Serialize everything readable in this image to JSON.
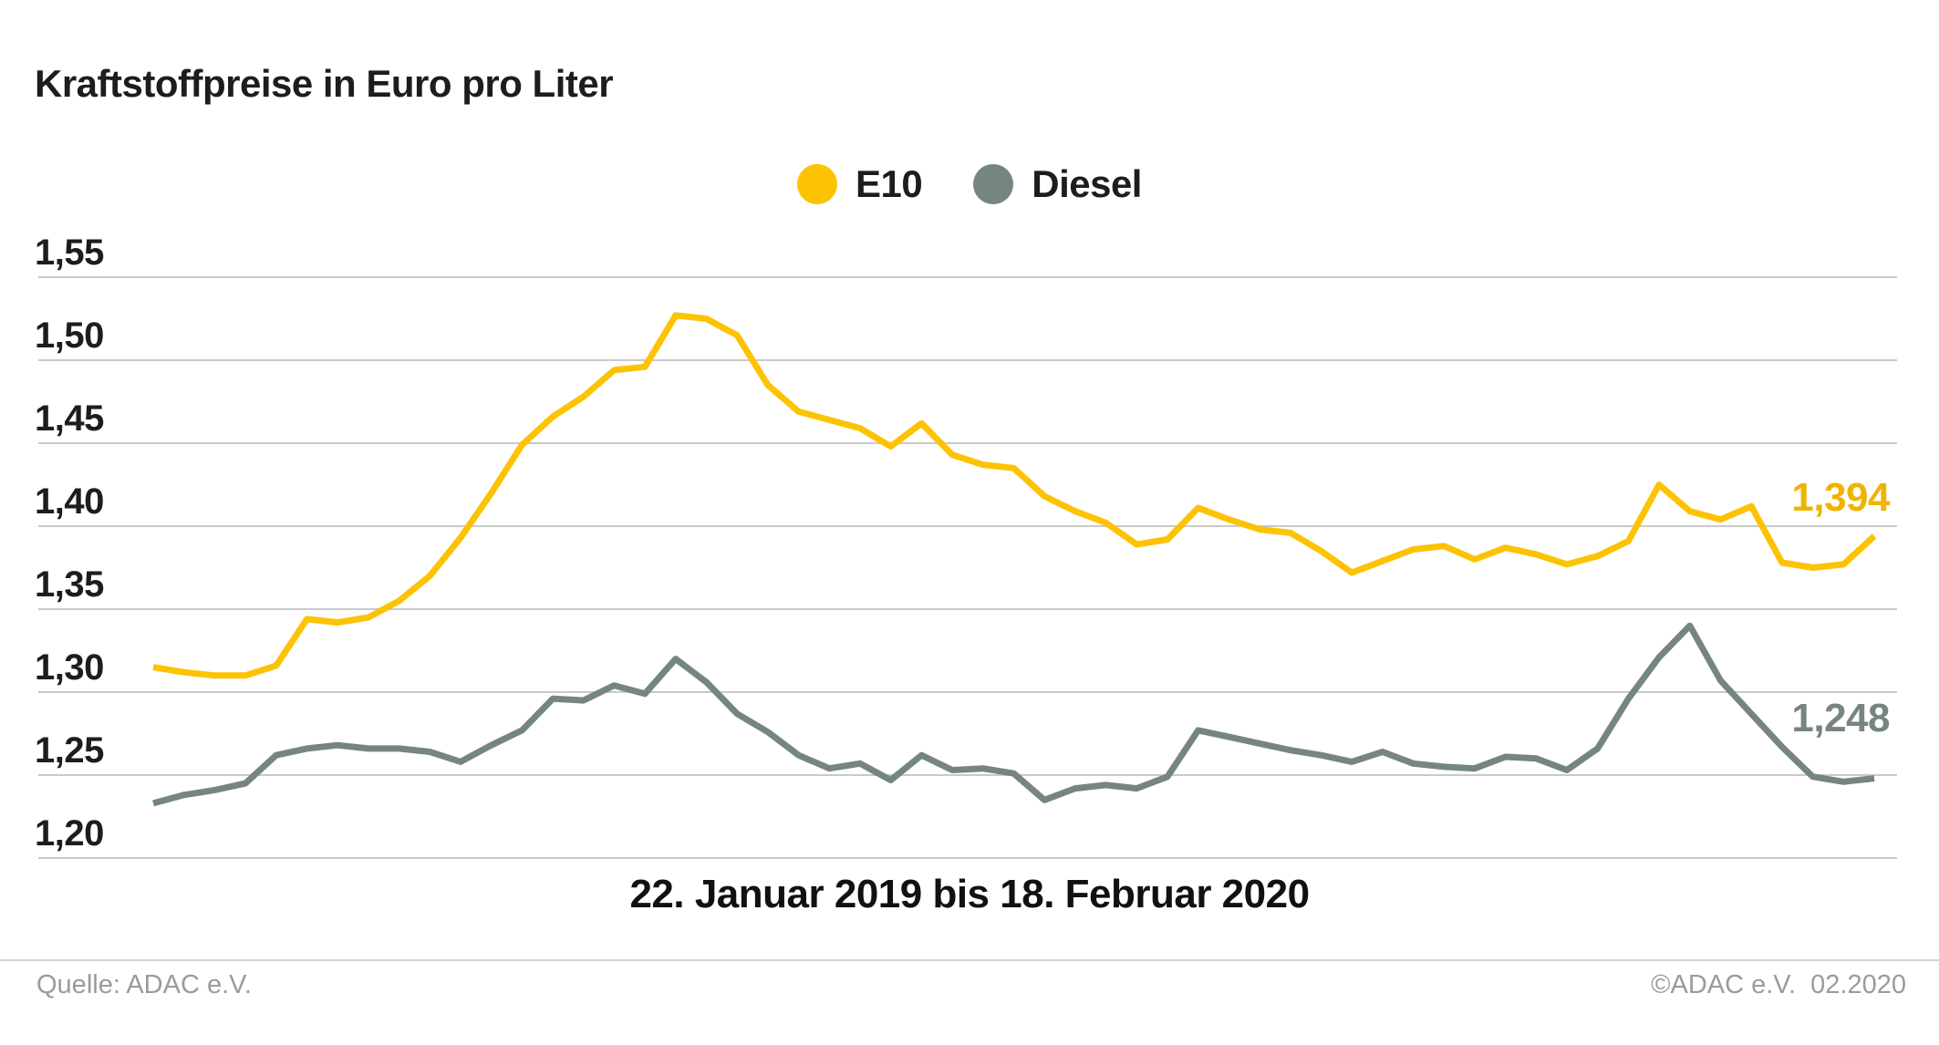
{
  "header": {
    "title": "Kraftstoffpreise in Euro pro Liter"
  },
  "legend": [
    {
      "name": "E10",
      "color": "#FCC305"
    },
    {
      "name": "Diesel",
      "color": "#75867E"
    }
  ],
  "chart_data": {
    "type": "line",
    "title": "Kraftstoffpreise in Euro pro Liter",
    "x_caption": "22. Januar 2019 bis 18. Februar 2020",
    "x_range": {
      "start": "22. Januar 2019",
      "end": "18. Februar 2020",
      "interval": "weekly"
    },
    "ylabel": "Euro pro Liter",
    "ylim": [
      1.2,
      1.55
    ],
    "grid": "horizontal",
    "legend_position": "top-center",
    "y_ticks": [
      {
        "label": "1,55",
        "value": 1.55
      },
      {
        "label": "1,50",
        "value": 1.5
      },
      {
        "label": "1,45",
        "value": 1.45
      },
      {
        "label": "1,40",
        "value": 1.4
      },
      {
        "label": "1,35",
        "value": 1.35
      },
      {
        "label": "1,30",
        "value": 1.3
      },
      {
        "label": "1,25",
        "value": 1.25
      },
      {
        "label": "1,20",
        "value": 1.2
      }
    ],
    "series": [
      {
        "name": "E10",
        "color": "#FCC305",
        "label_color": "#F0B400",
        "end_label": "1,394",
        "values": [
          1.315,
          1.312,
          1.31,
          1.31,
          1.316,
          1.344,
          1.342,
          1.345,
          1.355,
          1.37,
          1.393,
          1.42,
          1.449,
          1.466,
          1.478,
          1.494,
          1.496,
          1.527,
          1.525,
          1.515,
          1.485,
          1.469,
          1.464,
          1.459,
          1.448,
          1.462,
          1.443,
          1.437,
          1.435,
          1.418,
          1.409,
          1.402,
          1.389,
          1.392,
          1.411,
          1.404,
          1.398,
          1.396,
          1.385,
          1.372,
          1.379,
          1.386,
          1.388,
          1.38,
          1.387,
          1.383,
          1.377,
          1.382,
          1.391,
          1.425,
          1.409,
          1.404,
          1.412,
          1.378,
          1.375,
          1.377,
          1.394
        ]
      },
      {
        "name": "Diesel",
        "color": "#75867E",
        "label_color": "#75867E",
        "end_label": "1,248",
        "values": [
          1.233,
          1.238,
          1.241,
          1.245,
          1.262,
          1.266,
          1.268,
          1.266,
          1.266,
          1.264,
          1.258,
          1.268,
          1.277,
          1.296,
          1.295,
          1.304,
          1.299,
          1.32,
          1.306,
          1.287,
          1.276,
          1.262,
          1.254,
          1.257,
          1.247,
          1.262,
          1.253,
          1.254,
          1.251,
          1.235,
          1.242,
          1.244,
          1.242,
          1.249,
          1.277,
          1.273,
          1.269,
          1.265,
          1.262,
          1.258,
          1.264,
          1.257,
          1.255,
          1.254,
          1.261,
          1.26,
          1.253,
          1.266,
          1.296,
          1.321,
          1.34,
          1.307,
          1.287,
          1.267,
          1.249,
          1.246,
          1.248
        ]
      }
    ]
  },
  "footer": {
    "source": "Quelle: ADAC e.V.",
    "copyright": "©ADAC e.V.  02.2020"
  }
}
